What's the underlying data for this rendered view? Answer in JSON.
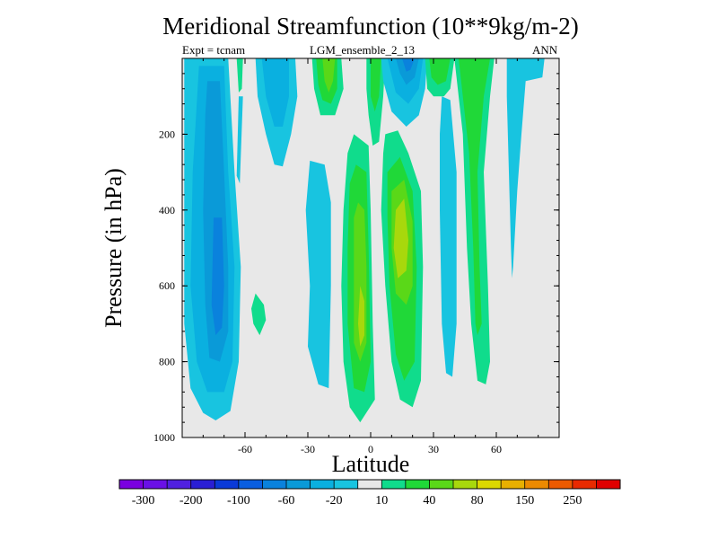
{
  "chart_data": {
    "type": "contour",
    "title": "Meridional Streamfunction (10**9kg/m-2)",
    "subtitle_left": "Expt = tcnam",
    "subtitle_center": "LGM_ensemble_2_13",
    "subtitle_right": "ANN",
    "xlabel": "Latitude",
    "ylabel": "Pressure (in hPa)",
    "xlim": [
      -90,
      90
    ],
    "ylim": [
      0,
      1000
    ],
    "y_inverted": true,
    "x_ticks": [
      -60,
      -30,
      0,
      30,
      60
    ],
    "y_ticks": [
      200,
      400,
      600,
      800,
      1000
    ],
    "colorbar": {
      "colors": [
        "#7a00e0",
        "#6a10e6",
        "#5020e0",
        "#2a1fd4",
        "#0a3ad8",
        "#0a5ee0",
        "#0a82dd",
        "#0a9ad8",
        "#0ab0e0",
        "#18c4e0",
        "#e8e8e8",
        "#10dc8c",
        "#20d838",
        "#5ad818",
        "#a8d80c",
        "#dcd800",
        "#e8b000",
        "#ec8a00",
        "#ec5a00",
        "#e82a00",
        "#e00000"
      ],
      "labels": [
        {
          "text": "-300",
          "index": 1
        },
        {
          "text": "-200",
          "index": 3
        },
        {
          "text": "-100",
          "index": 5
        },
        {
          "text": "-60",
          "index": 7
        },
        {
          "text": "-20",
          "index": 9
        },
        {
          "text": "10",
          "index": 11
        },
        {
          "text": "40",
          "index": 13
        },
        {
          "text": "80",
          "index": 15
        },
        {
          "text": "150",
          "index": 17
        },
        {
          "text": "250",
          "index": 19
        }
      ]
    },
    "regions": [
      {
        "name": "sh-deep-cell-outer",
        "color": "#18c4e0",
        "points": [
          [
            -87,
            0
          ],
          [
            -68,
            0
          ],
          [
            -65,
            300
          ],
          [
            -62,
            550
          ],
          [
            -63,
            800
          ],
          [
            -67,
            930
          ],
          [
            -74,
            955
          ],
          [
            -80,
            935
          ],
          [
            -86,
            870
          ],
          [
            -89,
            700
          ],
          [
            -89,
            0
          ]
        ]
      },
      {
        "name": "sh-deep-cell-mid",
        "color": "#0ab0e0",
        "points": [
          [
            -82,
            20
          ],
          [
            -70,
            20
          ],
          [
            -68,
            300
          ],
          [
            -65,
            550
          ],
          [
            -66,
            800
          ],
          [
            -70,
            880
          ],
          [
            -78,
            880
          ],
          [
            -83,
            800
          ],
          [
            -86,
            600
          ],
          [
            -85,
            300
          ]
        ]
      },
      {
        "name": "sh-deep-cell-core",
        "color": "#0a9ad8",
        "points": [
          [
            -78,
            60
          ],
          [
            -72,
            60
          ],
          [
            -70,
            300
          ],
          [
            -68,
            550
          ],
          [
            -68,
            720
          ],
          [
            -72,
            800
          ],
          [
            -77,
            790
          ],
          [
            -79,
            650
          ],
          [
            -80,
            400
          ],
          [
            -79,
            150
          ]
        ]
      },
      {
        "name": "sh-deep-cell-max",
        "color": "#0a82dd",
        "points": [
          [
            -75,
            420
          ],
          [
            -71,
            420
          ],
          [
            -70,
            600
          ],
          [
            -71,
            710
          ],
          [
            -74,
            730
          ],
          [
            -76,
            650
          ]
        ]
      },
      {
        "name": "sh-positive-sliver",
        "color": "#10dc8c",
        "points": [
          [
            -64,
            0
          ],
          [
            -61,
            0
          ],
          [
            -61.5,
            80
          ],
          [
            -63,
            90
          ]
        ]
      },
      {
        "name": "sh-negative-sliver",
        "color": "#18c4e0",
        "points": [
          [
            -63,
            100
          ],
          [
            -61,
            100
          ],
          [
            -62.5,
            330
          ],
          [
            -64,
            310
          ]
        ]
      },
      {
        "name": "sh-positive-blob",
        "color": "#10dc8c",
        "points": [
          [
            -55,
            620
          ],
          [
            -51,
            650
          ],
          [
            -50,
            690
          ],
          [
            -53,
            730
          ],
          [
            -56,
            700
          ],
          [
            -57,
            660
          ]
        ]
      },
      {
        "name": "ferrel-outer",
        "color": "#18c4e0",
        "points": [
          [
            -55,
            0
          ],
          [
            -36,
            0
          ],
          [
            -35,
            100
          ],
          [
            -38,
            200
          ],
          [
            -42,
            285
          ],
          [
            -46,
            280
          ],
          [
            -50,
            200
          ],
          [
            -54,
            100
          ]
        ]
      },
      {
        "name": "ferrel-inner",
        "color": "#0ab0e0",
        "points": [
          [
            -52,
            0
          ],
          [
            -39,
            0
          ],
          [
            -39,
            100
          ],
          [
            -42,
            180
          ],
          [
            -46,
            180
          ],
          [
            -50,
            100
          ]
        ]
      },
      {
        "name": "sh-hadley-edge",
        "color": "#18c4e0",
        "points": [
          [
            -29,
            270
          ],
          [
            -22,
            280
          ],
          [
            -19,
            380
          ],
          [
            -19,
            600
          ],
          [
            -20,
            870
          ],
          [
            -25,
            860
          ],
          [
            -30,
            760
          ],
          [
            -29,
            600
          ],
          [
            -31,
            400
          ]
        ]
      },
      {
        "name": "sh-hadley-upper-outer",
        "color": "#10dc8c",
        "points": [
          [
            -28,
            0
          ],
          [
            -14,
            0
          ],
          [
            -13,
            80
          ],
          [
            -17,
            150
          ],
          [
            -24,
            150
          ],
          [
            -27,
            80
          ]
        ]
      },
      {
        "name": "sh-hadley-upper-mid",
        "color": "#20d838",
        "points": [
          [
            -26,
            0
          ],
          [
            -16,
            0
          ],
          [
            -16,
            80
          ],
          [
            -19,
            120
          ],
          [
            -23,
            110
          ],
          [
            -25,
            70
          ]
        ]
      },
      {
        "name": "sh-hadley-upper-core",
        "color": "#5ad818",
        "points": [
          [
            -23,
            0
          ],
          [
            -17,
            0
          ],
          [
            -18,
            60
          ],
          [
            -20,
            90
          ],
          [
            -22,
            60
          ]
        ]
      },
      {
        "name": "hadley-lower-outer",
        "color": "#10dc8c",
        "points": [
          [
            -8,
            200
          ],
          [
            -1,
            230
          ],
          [
            0,
            400
          ],
          [
            1,
            700
          ],
          [
            2,
            900
          ],
          [
            -5,
            960
          ],
          [
            -10,
            920
          ],
          [
            -13,
            800
          ],
          [
            -14,
            600
          ],
          [
            -13,
            400
          ],
          [
            -11,
            250
          ]
        ]
      },
      {
        "name": "hadley-lower-mid",
        "color": "#20d838",
        "points": [
          [
            -7,
            280
          ],
          [
            -2,
            300
          ],
          [
            -1,
            500
          ],
          [
            0,
            800
          ],
          [
            -3,
            880
          ],
          [
            -8,
            870
          ],
          [
            -11,
            700
          ],
          [
            -11,
            500
          ],
          [
            -10,
            330
          ]
        ]
      },
      {
        "name": "hadley-lower-inner",
        "color": "#5ad818",
        "points": [
          [
            -6,
            380
          ],
          [
            -3,
            400
          ],
          [
            -2,
            550
          ],
          [
            -2,
            750
          ],
          [
            -5,
            800
          ],
          [
            -8,
            750
          ],
          [
            -8,
            550
          ],
          [
            -8,
            420
          ]
        ]
      },
      {
        "name": "hadley-lower-core",
        "color": "#a8d80c",
        "points": [
          [
            -5,
            600
          ],
          [
            -3,
            640
          ],
          [
            -3,
            730
          ],
          [
            -5,
            760
          ],
          [
            -6,
            700
          ]
        ]
      },
      {
        "name": "nh-hadley-outer",
        "color": "#10dc8c",
        "points": [
          [
            7,
            200
          ],
          [
            13,
            190
          ],
          [
            18,
            250
          ],
          [
            24,
            350
          ],
          [
            25,
            550
          ],
          [
            24,
            850
          ],
          [
            20,
            920
          ],
          [
            14,
            900
          ],
          [
            10,
            800
          ],
          [
            7,
            600
          ],
          [
            5,
            400
          ],
          [
            6,
            250
          ]
        ]
      },
      {
        "name": "nh-hadley-mid",
        "color": "#20d838",
        "points": [
          [
            8,
            300
          ],
          [
            14,
            260
          ],
          [
            20,
            350
          ],
          [
            22,
            550
          ],
          [
            21,
            800
          ],
          [
            16,
            850
          ],
          [
            12,
            780
          ],
          [
            9,
            600
          ],
          [
            8,
            420
          ]
        ]
      },
      {
        "name": "nh-hadley-inner",
        "color": "#5ad818",
        "points": [
          [
            10,
            350
          ],
          [
            16,
            320
          ],
          [
            20,
            430
          ],
          [
            20,
            600
          ],
          [
            17,
            650
          ],
          [
            12,
            620
          ],
          [
            10,
            500
          ]
        ]
      },
      {
        "name": "nh-hadley-core",
        "color": "#a8d80c",
        "points": [
          [
            12,
            400
          ],
          [
            16,
            370
          ],
          [
            18,
            480
          ],
          [
            17,
            560
          ],
          [
            13,
            580
          ],
          [
            11,
            500
          ]
        ]
      },
      {
        "name": "nh-upper-positive-outer",
        "color": "#10dc8c",
        "points": [
          [
            -2,
            0
          ],
          [
            7,
            0
          ],
          [
            6,
            100
          ],
          [
            4,
            220
          ],
          [
            1,
            230
          ],
          [
            -1,
            150
          ],
          [
            -2,
            80
          ]
        ]
      },
      {
        "name": "nh-upper-positive-inner",
        "color": "#20d838",
        "points": [
          [
            0,
            0
          ],
          [
            5,
            0
          ],
          [
            4,
            100
          ],
          [
            2,
            140
          ],
          [
            0,
            100
          ]
        ]
      },
      {
        "name": "nh-upper-negative-outer",
        "color": "#18c4e0",
        "points": [
          [
            5,
            0
          ],
          [
            27,
            0
          ],
          [
            26,
            80
          ],
          [
            23,
            150
          ],
          [
            17,
            180
          ],
          [
            10,
            140
          ],
          [
            6,
            60
          ]
        ]
      },
      {
        "name": "nh-upper-negative-mid",
        "color": "#0ab0e0",
        "points": [
          [
            8,
            0
          ],
          [
            25,
            0
          ],
          [
            23,
            80
          ],
          [
            18,
            120
          ],
          [
            12,
            90
          ]
        ]
      },
      {
        "name": "nh-upper-negative-inner",
        "color": "#0a9ad8",
        "points": [
          [
            12,
            0
          ],
          [
            23,
            0
          ],
          [
            21,
            50
          ],
          [
            17,
            70
          ],
          [
            14,
            40
          ]
        ]
      },
      {
        "name": "nh-upper-negative-core",
        "color": "#0a82dd",
        "points": [
          [
            15,
            0
          ],
          [
            21,
            0
          ],
          [
            19,
            30
          ],
          [
            17,
            35
          ]
        ]
      },
      {
        "name": "nh-mid-positive-outer",
        "color": "#10dc8c",
        "points": [
          [
            26,
            0
          ],
          [
            40,
            0
          ],
          [
            38,
            80
          ],
          [
            35,
            100
          ],
          [
            30,
            100
          ],
          [
            27,
            80
          ]
        ]
      },
      {
        "name": "nh-mid-positive-inner",
        "color": "#20d838",
        "points": [
          [
            28,
            0
          ],
          [
            38,
            0
          ],
          [
            36,
            60
          ],
          [
            32,
            70
          ],
          [
            29,
            50
          ]
        ]
      },
      {
        "name": "nh-mid-negative-column",
        "color": "#18c4e0",
        "points": [
          [
            34,
            100
          ],
          [
            38,
            110
          ],
          [
            41,
            300
          ],
          [
            41,
            700
          ],
          [
            39,
            840
          ],
          [
            36,
            830
          ],
          [
            34,
            700
          ],
          [
            33,
            400
          ],
          [
            33,
            200
          ]
        ]
      },
      {
        "name": "nh-ferrel-outer",
        "color": "#10dc8c",
        "points": [
          [
            40,
            0
          ],
          [
            59,
            0
          ],
          [
            57,
            100
          ],
          [
            54,
            300
          ],
          [
            56,
            600
          ],
          [
            57,
            800
          ],
          [
            55,
            860
          ],
          [
            51,
            850
          ],
          [
            48,
            700
          ],
          [
            46,
            500
          ],
          [
            44,
            200
          ]
        ]
      },
      {
        "name": "nh-ferrel-inner",
        "color": "#20d838",
        "points": [
          [
            42,
            0
          ],
          [
            57,
            0
          ],
          [
            54,
            100
          ],
          [
            51,
            300
          ],
          [
            52,
            550
          ],
          [
            53,
            700
          ],
          [
            51,
            730
          ],
          [
            50,
            700
          ],
          [
            49,
            500
          ],
          [
            47,
            250
          ]
        ]
      },
      {
        "name": "nh-polar-negative",
        "color": "#18c4e0",
        "points": [
          [
            65,
            0
          ],
          [
            83,
            0
          ],
          [
            82,
            50
          ],
          [
            74,
            60
          ],
          [
            72,
            200
          ],
          [
            70,
            350
          ],
          [
            68,
            550
          ],
          [
            67.5,
            580
          ],
          [
            67,
            500
          ],
          [
            66,
            300
          ],
          [
            65,
            100
          ]
        ]
      }
    ]
  }
}
